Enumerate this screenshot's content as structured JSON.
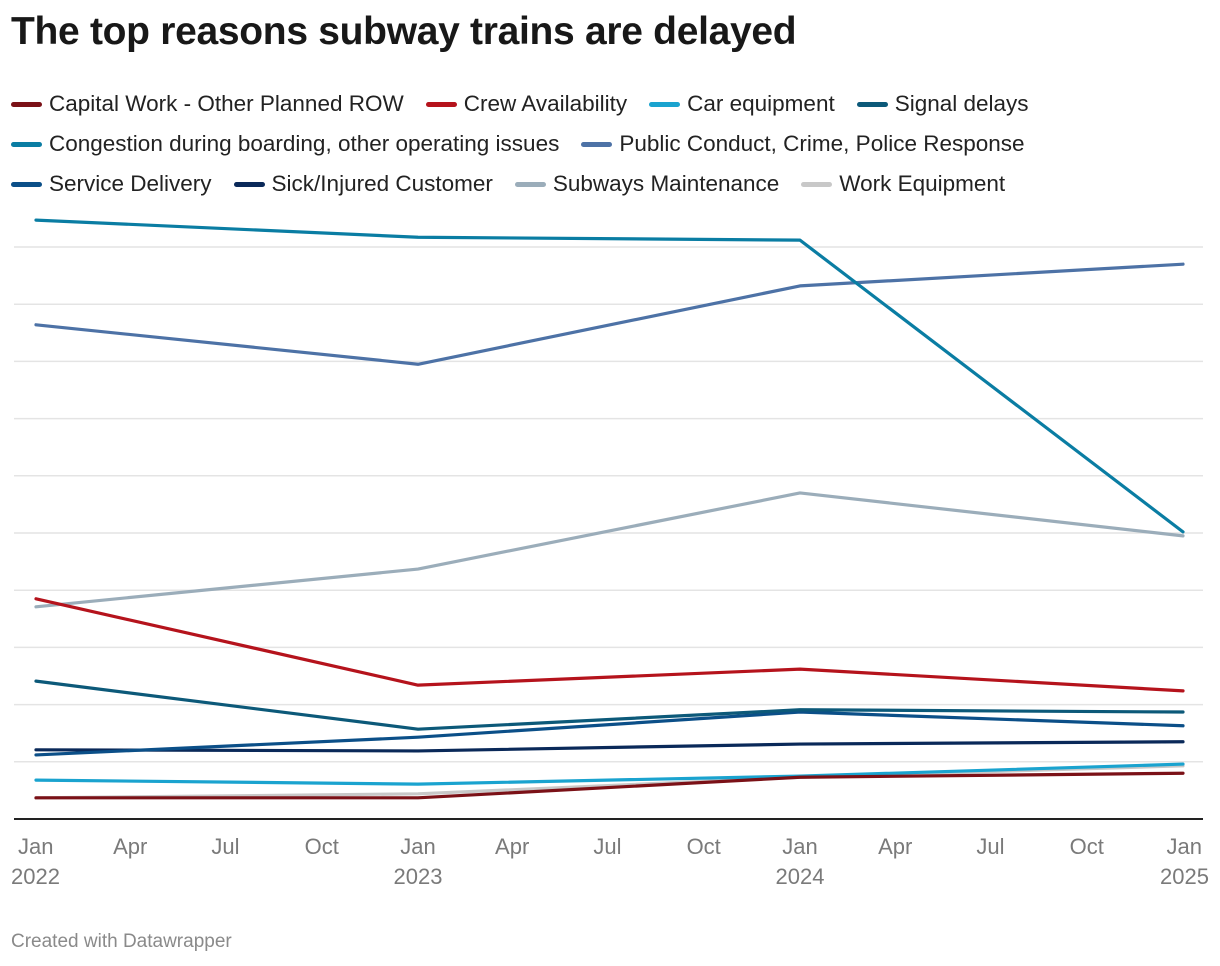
{
  "title": "The top reasons subway trains are delayed",
  "footer": "Created with Datawrapper",
  "chart_data": {
    "type": "line",
    "title": "The top reasons subway trains are delayed",
    "x": [
      "2022-01",
      "2023-01",
      "2024-01",
      "2025-01"
    ],
    "x_ticks": [
      {
        "date": "2022-01",
        "label": "Jan",
        "year": "2022"
      },
      {
        "date": "2022-04",
        "label": "Apr",
        "year": ""
      },
      {
        "date": "2022-07",
        "label": "Jul",
        "year": ""
      },
      {
        "date": "2022-10",
        "label": "Oct",
        "year": ""
      },
      {
        "date": "2023-01",
        "label": "Jan",
        "year": "2023"
      },
      {
        "date": "2023-04",
        "label": "Apr",
        "year": ""
      },
      {
        "date": "2023-07",
        "label": "Jul",
        "year": ""
      },
      {
        "date": "2023-10",
        "label": "Oct",
        "year": ""
      },
      {
        "date": "2024-01",
        "label": "Jan",
        "year": "2024"
      },
      {
        "date": "2024-04",
        "label": "Apr",
        "year": ""
      },
      {
        "date": "2024-07",
        "label": "Jul",
        "year": ""
      },
      {
        "date": "2024-10",
        "label": "Oct",
        "year": ""
      },
      {
        "date": "2025-01",
        "label": "Jan",
        "year": "2025"
      }
    ],
    "y_axis_labels_shown": false,
    "ylim": [
      0,
      10.6
    ],
    "y_gridlines": [
      1,
      2,
      3,
      4,
      5,
      6,
      7,
      8,
      9,
      10
    ],
    "grid": true,
    "legend_placement": "top",
    "series": [
      {
        "name": "Capital Work - Other Planned ROW",
        "color": "#7b1117",
        "values": [
          0.37,
          0.37,
          0.73,
          0.8
        ]
      },
      {
        "name": "Crew Availability",
        "color": "#b5131c",
        "values": [
          3.85,
          2.34,
          2.62,
          2.24
        ]
      },
      {
        "name": "Car equipment",
        "color": "#1aa3cf",
        "values": [
          0.68,
          0.61,
          0.75,
          0.96
        ]
      },
      {
        "name": "Signal delays",
        "color": "#0c5979",
        "values": [
          2.41,
          1.57,
          1.91,
          1.87
        ]
      },
      {
        "name": "Congestion during boarding, other operating issues",
        "color": "#0a7da3",
        "values": [
          10.47,
          10.17,
          10.12,
          5.02
        ]
      },
      {
        "name": "Public Conduct, Crime, Police Response",
        "color": "#4d72a6",
        "values": [
          8.64,
          7.95,
          9.32,
          9.7
        ]
      },
      {
        "name": "Service Delivery",
        "color": "#0b4f88",
        "values": [
          1.12,
          1.43,
          1.87,
          1.63
        ]
      },
      {
        "name": "Sick/Injured Customer",
        "color": "#0a2959",
        "values": [
          1.21,
          1.19,
          1.31,
          1.35
        ]
      },
      {
        "name": "Subways Maintenance",
        "color": "#9badba",
        "values": [
          3.71,
          4.37,
          5.7,
          4.95
        ]
      },
      {
        "name": "Work Equipment",
        "color": "#c8c8c8",
        "values": [
          0.37,
          0.44,
          0.73,
          0.93
        ]
      }
    ]
  }
}
